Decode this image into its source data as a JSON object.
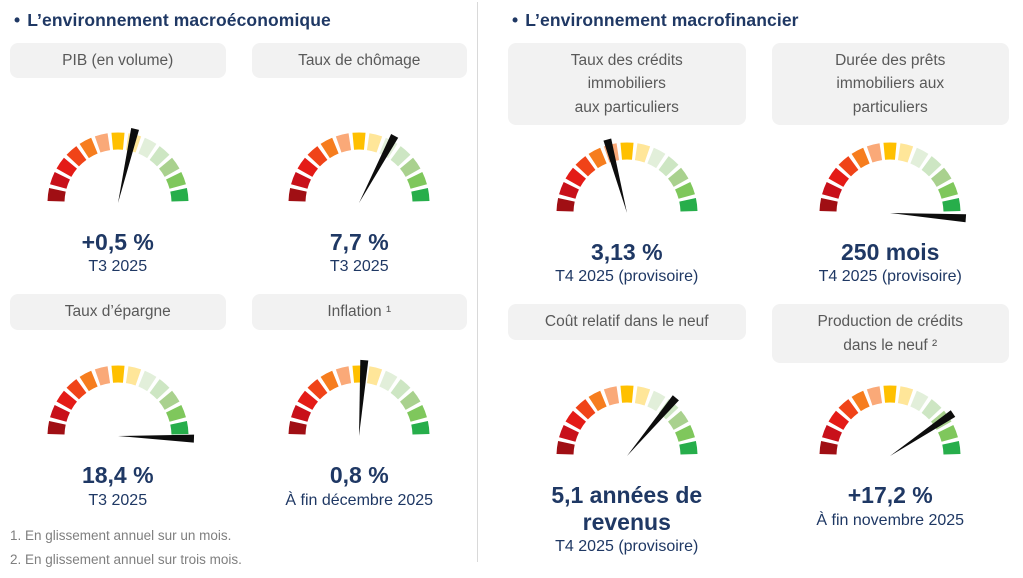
{
  "colors": {
    "title_navy": "#1F3864",
    "value_navy": "#1F3864",
    "chip_background": "#F2F2F2",
    "chip_text": "#595959",
    "footnote_gray": "#7F7F7F",
    "divider_gray": "#D9D9D9",
    "needle_black": "#0D0D0D",
    "page_background": "#FFFFFF"
  },
  "gauge_palette": [
    "#A00F14",
    "#C8101A",
    "#E41B17",
    "#F04318",
    "#F67D1E",
    "#FAA978",
    "#FFC000",
    "#FFE699",
    "#E2EFDA",
    "#CDE6C3",
    "#A9D18E",
    "#7FC75C",
    "#27AE4B"
  ],
  "sections": [
    {
      "title": "L’environnement macroéconomique",
      "bullet": "•",
      "cards": [
        {
          "label": "PIB (en volume)",
          "value": "+0,5 %",
          "period": "T3 2025"
        },
        {
          "label": "Taux de chômage",
          "value": "7,7 %",
          "period": "T3 2025"
        },
        {
          "label": "Taux d’épargne",
          "value": "18,4 %",
          "period": "T3 2025"
        },
        {
          "label": "Inflation ¹",
          "value": "0,8 %",
          "period": "À fin décembre 2025"
        }
      ]
    },
    {
      "title": "L’environnement macrofinancier",
      "bullet": "•",
      "cards": [
        {
          "label": "Taux des crédits\nimmobiliers\naux particuliers",
          "value": "3,13 %",
          "period": "T4 2025 (provisoire)"
        },
        {
          "label": "Durée des prêts\nimmobiliers aux\nparticuliers",
          "value": "250 mois",
          "period": "T4 2025 (provisoire)"
        },
        {
          "label": "Coût relatif dans le neuf",
          "value": "5,1 années de revenus",
          "period": "T4 2025 (provisoire)"
        },
        {
          "label": "Production de crédits\ndans le neuf ²",
          "value": "+17,2 %",
          "period": "À fin novembre 2025"
        }
      ]
    }
  ],
  "footnotes": [
    "1. En glissement annuel sur un mois.",
    "2. En glissement annuel sur trois mois."
  ],
  "chart_data": [
    {
      "type": "gauge",
      "indicator": "PIB (en volume)",
      "value": 0.5,
      "unit": "%",
      "display": "+0,5 %",
      "period": "T3 2025",
      "needle_angle_deg": 13,
      "scale": "red-to-green semicircle, 13 segments"
    },
    {
      "type": "gauge",
      "indicator": "Taux de chômage",
      "value": 7.7,
      "unit": "%",
      "display": "7,7 %",
      "period": "T3 2025",
      "needle_angle_deg": 28,
      "scale": "red-to-green semicircle, 13 segments"
    },
    {
      "type": "gauge",
      "indicator": "Taux d’épargne",
      "value": 18.4,
      "unit": "%",
      "display": "18,4 %",
      "period": "T3 2025",
      "needle_angle_deg": 92,
      "scale": "red-to-green semicircle, 13 segments"
    },
    {
      "type": "gauge",
      "indicator": "Inflation",
      "value": 0.8,
      "unit": "%",
      "display": "0,8 %",
      "period": "À fin décembre 2025",
      "needle_angle_deg": 4,
      "scale": "red-to-green semicircle, 13 segments"
    },
    {
      "type": "gauge",
      "indicator": "Taux des crédits immobiliers aux particuliers",
      "value": 3.13,
      "unit": "%",
      "display": "3,13 %",
      "period": "T4 2025 (provisoire)",
      "needle_angle_deg": -15,
      "scale": "red-to-green semicircle, 13 segments"
    },
    {
      "type": "gauge",
      "indicator": "Durée des prêts immobiliers aux particuliers",
      "value": 250,
      "unit": "mois",
      "display": "250 mois",
      "period": "T4 2025 (provisoire)",
      "needle_angle_deg": 94,
      "scale": "red-to-green semicircle, 13 segments"
    },
    {
      "type": "gauge",
      "indicator": "Coût relatif dans le neuf",
      "value": 5.1,
      "unit": "années de revenus",
      "display": "5,1 années de revenus",
      "period": "T4 2025 (provisoire)",
      "needle_angle_deg": 40,
      "scale": "red-to-green semicircle, 13 segments"
    },
    {
      "type": "gauge",
      "indicator": "Production de crédits dans le neuf",
      "value": 17.2,
      "unit": "%",
      "display": "+17,2 %",
      "period": "À fin novembre 2025",
      "needle_angle_deg": 56,
      "scale": "red-to-green semicircle, 13 segments"
    }
  ]
}
